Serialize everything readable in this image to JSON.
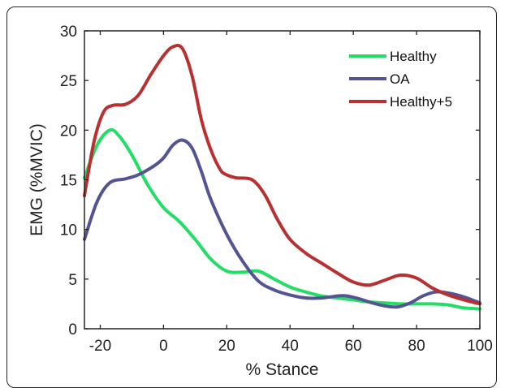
{
  "chart_data": {
    "type": "line",
    "title": "",
    "xlabel": "% Stance",
    "ylabel": "EMG (%MVIC)",
    "xlim": [
      -25,
      100
    ],
    "ylim": [
      0,
      30
    ],
    "xticks": [
      -20,
      0,
      20,
      40,
      60,
      80,
      100
    ],
    "yticks": [
      0,
      5,
      10,
      15,
      20,
      25,
      30
    ],
    "grid": false,
    "legend_position": "top-right",
    "series": [
      {
        "name": "Healthy",
        "color": "#22dd66",
        "x": [
          -25,
          -21,
          -17,
          -14,
          -10,
          -5,
          0,
          5,
          10,
          15,
          20,
          25,
          30,
          35,
          40,
          45,
          50,
          55,
          60,
          65,
          70,
          75,
          80,
          85,
          90,
          95,
          100
        ],
        "y": [
          15.2,
          18.5,
          20.0,
          19.4,
          17.5,
          14.5,
          12.2,
          10.8,
          9.0,
          7.0,
          5.8,
          5.7,
          5.8,
          5.0,
          4.2,
          3.7,
          3.3,
          3.1,
          2.9,
          2.7,
          2.6,
          2.5,
          2.5,
          2.5,
          2.4,
          2.1,
          2.0
        ]
      },
      {
        "name": "OA",
        "color": "#545493",
        "x": [
          -25,
          -21,
          -17,
          -12,
          -8,
          -3,
          0,
          3,
          6,
          9,
          12,
          15,
          20,
          25,
          30,
          35,
          40,
          45,
          50,
          55,
          58,
          62,
          66,
          70,
          74,
          78,
          82,
          86,
          90,
          95,
          100
        ],
        "y": [
          9.0,
          12.8,
          14.7,
          15.1,
          15.5,
          16.4,
          17.2,
          18.5,
          19.0,
          18.2,
          15.8,
          13.0,
          9.5,
          6.8,
          4.8,
          3.9,
          3.4,
          3.1,
          3.1,
          3.3,
          3.3,
          3.0,
          2.6,
          2.3,
          2.2,
          2.6,
          3.3,
          3.7,
          3.6,
          3.2,
          2.6
        ]
      },
      {
        "name": "Healthy+5",
        "color": "#b93030",
        "x": [
          -25,
          -22,
          -19,
          -16,
          -12,
          -8,
          -4,
          0,
          3,
          6,
          9,
          12,
          15,
          18,
          20,
          23,
          28,
          32,
          36,
          40,
          45,
          50,
          55,
          60,
          65,
          70,
          75,
          80,
          85,
          90,
          95,
          100
        ],
        "y": [
          13.4,
          18.8,
          21.8,
          22.5,
          22.6,
          23.5,
          25.6,
          27.5,
          28.4,
          28.2,
          25.5,
          21.0,
          18.0,
          16.0,
          15.5,
          15.2,
          15.0,
          13.5,
          11.0,
          9.0,
          7.6,
          6.6,
          5.6,
          4.7,
          4.4,
          4.9,
          5.4,
          5.1,
          4.1,
          3.4,
          2.9,
          2.5
        ]
      }
    ]
  }
}
